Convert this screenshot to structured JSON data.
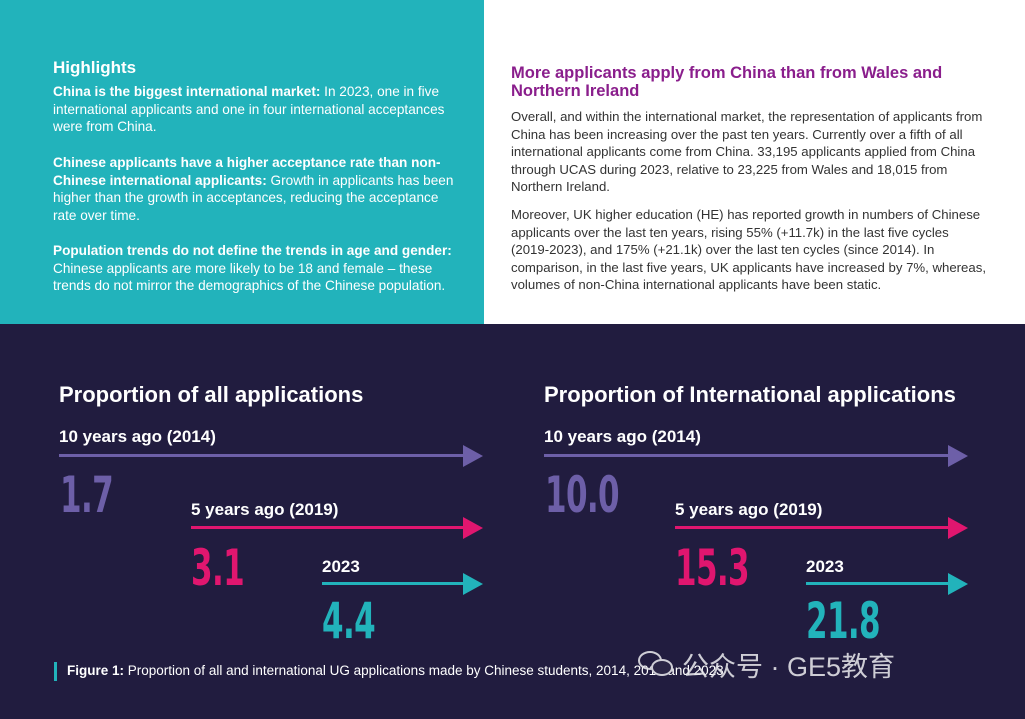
{
  "highlights": {
    "title": "Highlights",
    "items": [
      {
        "bold": "China is the biggest international market:",
        "text": " In 2023, one in five international applicants and one in four international acceptances were from China."
      },
      {
        "bold": "Chinese applicants have a higher acceptance rate than non-Chinese international applicants:",
        "text": " Growth in applicants has been higher than the growth in acceptances, reducing the acceptance rate over time."
      },
      {
        "bold": "Population trends do not define the trends in age and gender:",
        "text": " Chinese applicants are more likely to be 18 and female – these trends do not mirror the demographics of the Chinese population."
      }
    ]
  },
  "article": {
    "title": "More applicants apply from China than from Wales and Northern Ireland",
    "paragraphs": [
      "Overall, and within the international market, the representation of applicants from China has been increasing over the past ten years. Currently over a fifth of all international applicants come from China. 33,195 applicants applied from China through UCAS during 2023, relative to 23,225 from Wales and 18,015 from Northern Ireland.",
      "Moreover, UK higher education (HE) has reported growth in numbers of Chinese applicants over the last ten years, rising 55% (+11.7k) in the last five cycles (2019-2023), and 175% (+21.1k) over the last ten cycles (since 2014). In comparison, in the last five years, UK applicants have increased by 7%, whereas, volumes of non-China international applicants have been static."
    ]
  },
  "infographic": {
    "sections": [
      {
        "title": "Proportion of all applications",
        "rows": [
          {
            "label": "10 years ago (2014)",
            "value": "1.7",
            "color": "#6d5fa8"
          },
          {
            "label": "5 years ago (2019)",
            "value": "3.1",
            "color": "#e0166f"
          },
          {
            "label": "2023",
            "value": "4.4",
            "color": "#22b3bb"
          }
        ]
      },
      {
        "title": "Proportion of International applications",
        "rows": [
          {
            "label": "10 years ago (2014)",
            "value": "10.0",
            "color": "#6d5fa8"
          },
          {
            "label": "5 years ago (2019)",
            "value": "15.3",
            "color": "#e0166f"
          },
          {
            "label": "2023",
            "value": "21.8",
            "color": "#22b3bb"
          }
        ]
      }
    ],
    "caption": {
      "bold": "Figure 1:",
      "text": " Proportion of all and international UG applications made by Chinese students, 2014, 2019 and 2023"
    }
  },
  "watermark": {
    "icon": "wechat-icon",
    "text": "公众号 · GE5教育"
  }
}
